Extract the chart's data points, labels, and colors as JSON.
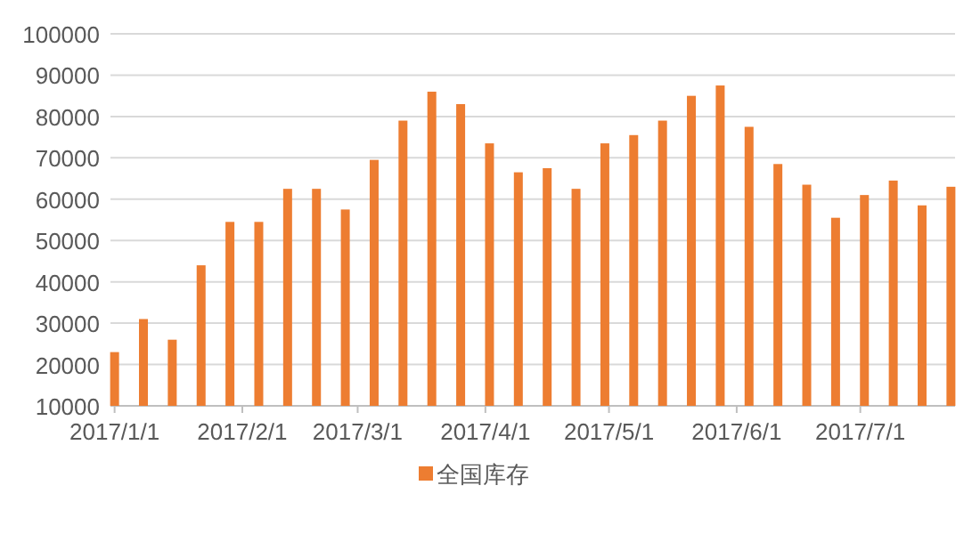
{
  "chart_data": {
    "type": "bar",
    "x": [
      "2017-01-01",
      "2017-01-08",
      "2017-01-15",
      "2017-01-22",
      "2017-01-29",
      "2017-02-05",
      "2017-02-12",
      "2017-02-19",
      "2017-02-26",
      "2017-03-05",
      "2017-03-12",
      "2017-03-19",
      "2017-03-26",
      "2017-04-02",
      "2017-04-09",
      "2017-04-16",
      "2017-04-23",
      "2017-04-30",
      "2017-05-07",
      "2017-05-14",
      "2017-05-21",
      "2017-05-28",
      "2017-06-04",
      "2017-06-11",
      "2017-06-18",
      "2017-06-25",
      "2017-07-02",
      "2017-07-09",
      "2017-07-16",
      "2017-07-23"
    ],
    "series": [
      {
        "name": "全国库存",
        "color": "#ed7d31",
        "values": [
          23000,
          31000,
          26000,
          44000,
          54500,
          54500,
          62500,
          62500,
          57500,
          69500,
          79000,
          86000,
          83000,
          73500,
          66500,
          67500,
          62500,
          73500,
          75500,
          79000,
          85000,
          87500,
          77500,
          68500,
          63500,
          55500,
          61000,
          64500,
          58500,
          63000
        ]
      }
    ],
    "xlim": [
      "2016-12-31",
      "2017-07-24"
    ],
    "xticks": [
      {
        "value": "2017-01-01",
        "label": "2017/1/1"
      },
      {
        "value": "2017-02-01",
        "label": "2017/2/1"
      },
      {
        "value": "2017-03-01",
        "label": "2017/3/1"
      },
      {
        "value": "2017-04-01",
        "label": "2017/4/1"
      },
      {
        "value": "2017-05-01",
        "label": "2017/5/1"
      },
      {
        "value": "2017-06-01",
        "label": "2017/6/1"
      },
      {
        "value": "2017-07-01",
        "label": "2017/7/1"
      }
    ],
    "ylim": [
      10000,
      100000
    ],
    "yticks": [
      10000,
      20000,
      30000,
      40000,
      50000,
      60000,
      70000,
      80000,
      90000,
      100000
    ],
    "grid": "y",
    "legend": "bottom"
  }
}
